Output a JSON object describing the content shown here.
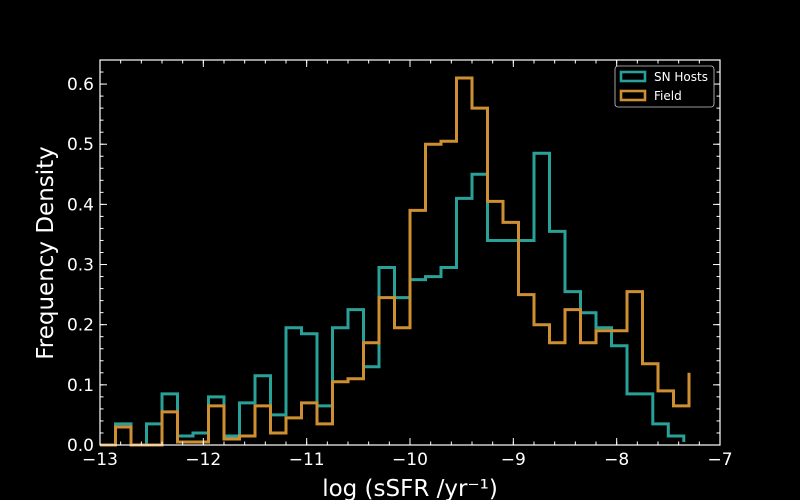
{
  "chart_data": {
    "type": "histogram-step",
    "xlabel": "log (sSFR /yr⁻¹)",
    "ylabel": "Frequency Density",
    "xlim": [
      -13,
      -7
    ],
    "ylim": [
      0,
      0.64
    ],
    "x_ticks": [
      -13,
      -12,
      -11,
      -10,
      -9,
      -8,
      -7
    ],
    "x_tick_labels": [
      "−13",
      "−12",
      "−11",
      "−10",
      "−9",
      "−8",
      "−7"
    ],
    "y_ticks": [
      0.0,
      0.1,
      0.2,
      0.3,
      0.4,
      0.5,
      0.6
    ],
    "y_tick_labels": [
      "0.0",
      "0.1",
      "0.2",
      "0.3",
      "0.4",
      "0.5",
      "0.6"
    ],
    "legend_position": "top-right",
    "grid": false,
    "series": [
      {
        "name": "SN Hosts",
        "color": "#2aa198",
        "bin_edges": [
          -12.85,
          -12.7,
          -12.55,
          -12.4,
          -12.25,
          -12.1,
          -11.95,
          -11.8,
          -11.65,
          -11.5,
          -11.35,
          -11.2,
          -11.05,
          -10.9,
          -10.75,
          -10.6,
          -10.45,
          -10.3,
          -10.15,
          -10.0,
          -9.85,
          -9.7,
          -9.55,
          -9.4,
          -9.25,
          -8.8,
          -8.65,
          -8.5,
          -8.35,
          -8.2,
          -8.05,
          -7.9,
          -7.65,
          -7.5,
          -7.35
        ],
        "values": [
          0.035,
          0.0,
          0.035,
          0.085,
          0.015,
          0.02,
          0.08,
          0.015,
          0.07,
          0.115,
          0.05,
          0.195,
          0.185,
          0.065,
          0.195,
          0.225,
          0.13,
          0.295,
          0.245,
          0.275,
          0.28,
          0.295,
          0.41,
          0.45,
          0.34,
          0.485,
          0.355,
          0.255,
          0.22,
          0.195,
          0.165,
          0.085,
          0.035,
          0.015,
          0.005
        ]
      },
      {
        "name": "Field",
        "color": "#cd8f32",
        "bin_edges": [
          -13.0,
          -12.85,
          -12.7,
          -12.55,
          -12.4,
          -12.25,
          -12.1,
          -11.95,
          -11.8,
          -11.65,
          -11.5,
          -11.35,
          -11.2,
          -11.05,
          -10.9,
          -10.75,
          -10.6,
          -10.45,
          -10.3,
          -10.15,
          -10.0,
          -9.85,
          -9.7,
          -9.55,
          -9.4,
          -9.25,
          -9.1,
          -8.95,
          -8.8,
          -8.65,
          -8.5,
          -8.35,
          -8.2,
          -8.05,
          -7.9,
          -7.75,
          -7.6,
          -7.45,
          -7.3
        ],
        "values": [
          0.0,
          0.03,
          0.0,
          0.0,
          0.055,
          0.005,
          0.005,
          0.065,
          0.01,
          0.015,
          0.065,
          0.02,
          0.045,
          0.07,
          0.035,
          0.105,
          0.11,
          0.17,
          0.245,
          0.195,
          0.39,
          0.5,
          0.505,
          0.61,
          0.56,
          0.405,
          0.37,
          0.25,
          0.2,
          0.17,
          0.225,
          0.17,
          0.19,
          0.19,
          0.255,
          0.135,
          0.09,
          0.065,
          0.12
        ]
      }
    ]
  }
}
